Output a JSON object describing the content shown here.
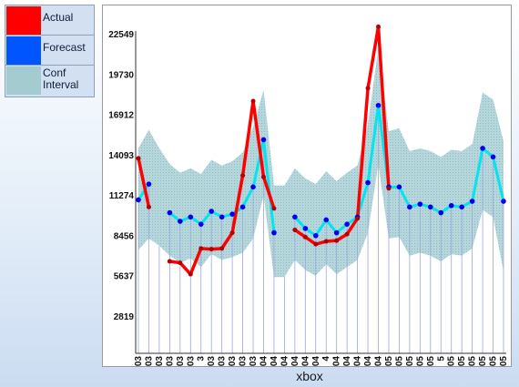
{
  "legend": [
    {
      "label": "Actual",
      "color": "#ff0000"
    },
    {
      "label": "Forecast",
      "color": "#0055ff"
    },
    {
      "label": "Conf Interval",
      "color": "#a3cbd0"
    }
  ],
  "chart_data": {
    "type": "line",
    "title": "",
    "xlabel": "xbox",
    "ylabel": "",
    "yticks": [
      2819,
      5637,
      8456,
      11274,
      14093,
      16912,
      19730,
      22549
    ],
    "ylim": [
      0,
      24000
    ],
    "grid": false,
    "legend_position": "top-left (outside plot)",
    "x_tick_labels": [
      "03",
      "03",
      "03",
      "03",
      "03",
      "03",
      "3",
      "03",
      "03",
      "03",
      "03",
      "03",
      "04",
      "04",
      "04",
      "04",
      "04",
      "04",
      "4",
      "04",
      "04",
      "04",
      "04",
      "04",
      "05",
      "05",
      "05",
      "05",
      "05",
      "5",
      "05",
      "05",
      "05",
      "05",
      "05",
      "05"
    ],
    "series": [
      {
        "name": "Actual",
        "color": "#ff0000",
        "values": [
          13900,
          10500,
          null,
          6700,
          6600,
          5800,
          7600,
          7550,
          7600,
          8700,
          12700,
          17900,
          12600,
          10400,
          null,
          8900,
          8400,
          7900,
          8100,
          8150,
          8600,
          9700,
          18800,
          23100,
          11800,
          null,
          null,
          null,
          null,
          null,
          null,
          null,
          null,
          null,
          null,
          null
        ]
      },
      {
        "name": "Forecast",
        "color": "#0000ee",
        "line_color": "#00e5ee",
        "values": [
          11000,
          12100,
          null,
          10100,
          9500,
          9800,
          9300,
          10200,
          9800,
          10000,
          10500,
          11900,
          15200,
          8700,
          null,
          9800,
          9000,
          8500,
          9600,
          8700,
          9300,
          9800,
          12200,
          17600,
          11900,
          11900,
          10500,
          10700,
          10500,
          10100,
          10600,
          10500,
          10900,
          14600,
          14000,
          10900
        ]
      },
      {
        "name": "Conf Interval",
        "color": "#a3cbd0",
        "lower": [
          7500,
          8300,
          7800,
          7100,
          6600,
          6900,
          6300,
          7200,
          6800,
          7000,
          7300,
          8300,
          11300,
          5600,
          5600,
          6800,
          6100,
          5700,
          6500,
          5800,
          6300,
          6800,
          8700,
          13500,
          8300,
          8400,
          7100,
          7300,
          7100,
          6700,
          7200,
          7100,
          7600,
          10300,
          9800,
          6000
        ],
        "upper": [
          14600,
          15900,
          14600,
          13500,
          12900,
          13200,
          12800,
          13800,
          13400,
          13700,
          14300,
          16100,
          18700,
          12000,
          12000,
          13200,
          12500,
          12100,
          13000,
          12300,
          12900,
          13400,
          16300,
          21600,
          15800,
          16000,
          14400,
          14600,
          14400,
          14000,
          14500,
          14400,
          14900,
          18500,
          18000,
          15100
        ]
      }
    ]
  }
}
